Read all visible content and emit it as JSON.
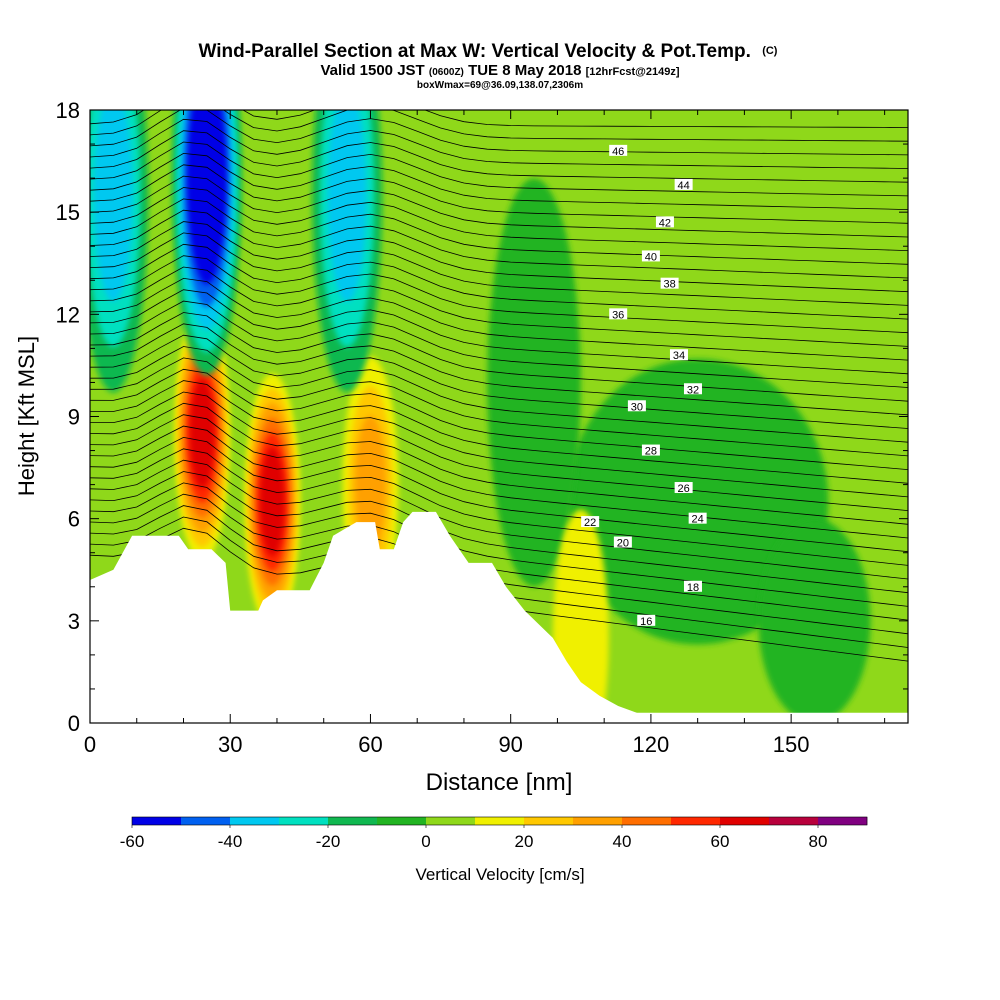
{
  "chart_data": {
    "type": "heatmap",
    "title": {
      "main": "Wind-Parallel Section at Max W: Vertical Velocity & Pot.Temp.",
      "copyright": "(C)",
      "line2_a": "Valid 1500 JST",
      "line2_b": "(0600Z)",
      "line2_c": "TUE 8 May 2018",
      "line2_d": "[12hrFcst@2149z]",
      "line3": "boxWmax=69@36.09,138.07,2306m"
    },
    "xlabel": "Distance [nm]",
    "ylabel": "Height [Kft MSL]",
    "xlim": [
      0,
      175
    ],
    "ylim": [
      0,
      18
    ],
    "xticks": [
      0,
      30,
      60,
      90,
      120,
      150
    ],
    "yticks": [
      0,
      3,
      6,
      9,
      12,
      15,
      18
    ],
    "colorbar": {
      "label": "Vertical Velocity [cm/s]",
      "ticks": [
        "-60",
        "-40",
        "-20",
        "0",
        "20",
        "40",
        "60",
        "80"
      ],
      "range": [
        -60,
        90
      ],
      "colors": [
        "#0000e6",
        "#0060f0",
        "#00c8f0",
        "#00e0c0",
        "#10b850",
        "#22b422",
        "#8fd81a",
        "#f0f000",
        "#ffc800",
        "#ffa000",
        "#ff6e00",
        "#ff2800",
        "#e00000",
        "#b8003c",
        "#800080"
      ]
    },
    "terrain": [
      [
        0,
        4.2
      ],
      [
        5,
        4.5
      ],
      [
        9,
        5.5
      ],
      [
        19,
        5.5
      ],
      [
        21,
        5.1
      ],
      [
        26,
        5.1
      ],
      [
        29,
        4.7
      ],
      [
        30,
        3.3
      ],
      [
        36,
        3.3
      ],
      [
        37,
        3.6
      ],
      [
        40,
        3.9
      ],
      [
        47,
        3.9
      ],
      [
        50,
        4.7
      ],
      [
        52,
        5.5
      ],
      [
        57,
        5.9
      ],
      [
        61,
        5.9
      ],
      [
        62,
        5.1
      ],
      [
        65,
        5.1
      ],
      [
        67,
        5.9
      ],
      [
        69,
        6.2
      ],
      [
        74,
        6.2
      ],
      [
        77,
        5.5
      ],
      [
        81,
        4.7
      ],
      [
        86,
        4.7
      ],
      [
        89,
        4.0
      ],
      [
        93,
        3.3
      ],
      [
        99,
        2.5
      ],
      [
        102,
        1.8
      ],
      [
        105,
        1.2
      ],
      [
        109,
        0.8
      ],
      [
        113,
        0.5
      ],
      [
        117,
        0.3
      ],
      [
        175,
        0.3
      ]
    ],
    "theta_contours": [
      {
        "label": "16",
        "lx": 119,
        "ly": 3.0
      },
      {
        "label": "18",
        "lx": 129,
        "ly": 4.0
      },
      {
        "label": "20",
        "lx": 114,
        "ly": 5.3
      },
      {
        "label": "22",
        "lx": 107,
        "ly": 5.9
      },
      {
        "label": "24",
        "lx": 130,
        "ly": 6.0
      },
      {
        "label": "26",
        "lx": 127,
        "ly": 6.9
      },
      {
        "label": "28",
        "lx": 120,
        "ly": 8.0
      },
      {
        "label": "30",
        "lx": 117,
        "ly": 9.3
      },
      {
        "label": "32",
        "lx": 129,
        "ly": 9.8
      },
      {
        "label": "34",
        "lx": 126,
        "ly": 10.8
      },
      {
        "label": "36",
        "lx": 113,
        "ly": 12.0
      },
      {
        "label": "38",
        "lx": 124,
        "ly": 12.9
      },
      {
        "label": "40",
        "lx": 120,
        "ly": 13.7
      },
      {
        "label": "42",
        "lx": 123,
        "ly": 14.7
      },
      {
        "label": "44",
        "lx": 127,
        "ly": 15.8
      },
      {
        "label": "46",
        "lx": 113,
        "ly": 16.8
      }
    ],
    "w_features": [
      {
        "x": 24,
        "y": 8.5,
        "w": 69
      },
      {
        "x": 39,
        "y": 6.5,
        "w": 60
      },
      {
        "x": 60,
        "y": 7.0,
        "w": 30
      },
      {
        "x": 105,
        "y": 2.5,
        "w": 15
      },
      {
        "x": 25,
        "y": 16.0,
        "w": -60
      },
      {
        "x": 5,
        "y": 15.5,
        "w": -35
      },
      {
        "x": 55,
        "y": 15.5,
        "w": -30
      }
    ]
  }
}
